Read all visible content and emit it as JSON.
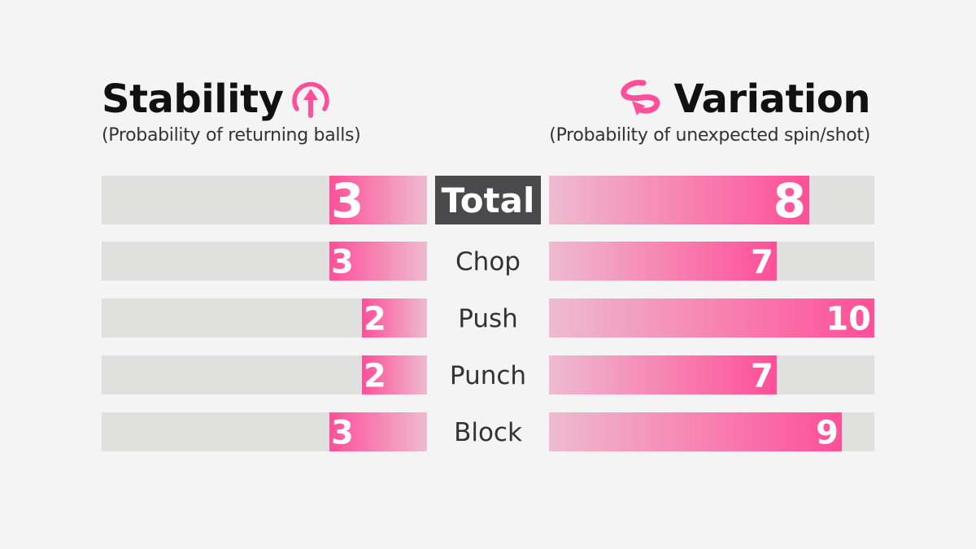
{
  "chart_data": {
    "type": "bar",
    "max": 10,
    "left_series": {
      "title": "Stability",
      "subtitle": "(Probability of returning balls)",
      "icon": "up-arrow-circle-icon"
    },
    "right_series": {
      "title": "Variation",
      "subtitle": "(Probability of unexpected spin/shot)",
      "icon": "spin-arrow-icon"
    },
    "rows": [
      {
        "label": "Total",
        "stability": 3,
        "variation": 8,
        "highlight": true
      },
      {
        "label": "Chop",
        "stability": 3,
        "variation": 7
      },
      {
        "label": "Push",
        "stability": 2,
        "variation": 10
      },
      {
        "label": "Punch",
        "stability": 2,
        "variation": 7
      },
      {
        "label": "Block",
        "stability": 3,
        "variation": 9
      }
    ],
    "colors": {
      "accent": "#ff4f98",
      "accent_light": "#eebbd0",
      "track": "#e0e0df",
      "total_bg": "#4a4a4c",
      "label_text": "#333333",
      "background": "#f4f4f4"
    }
  }
}
